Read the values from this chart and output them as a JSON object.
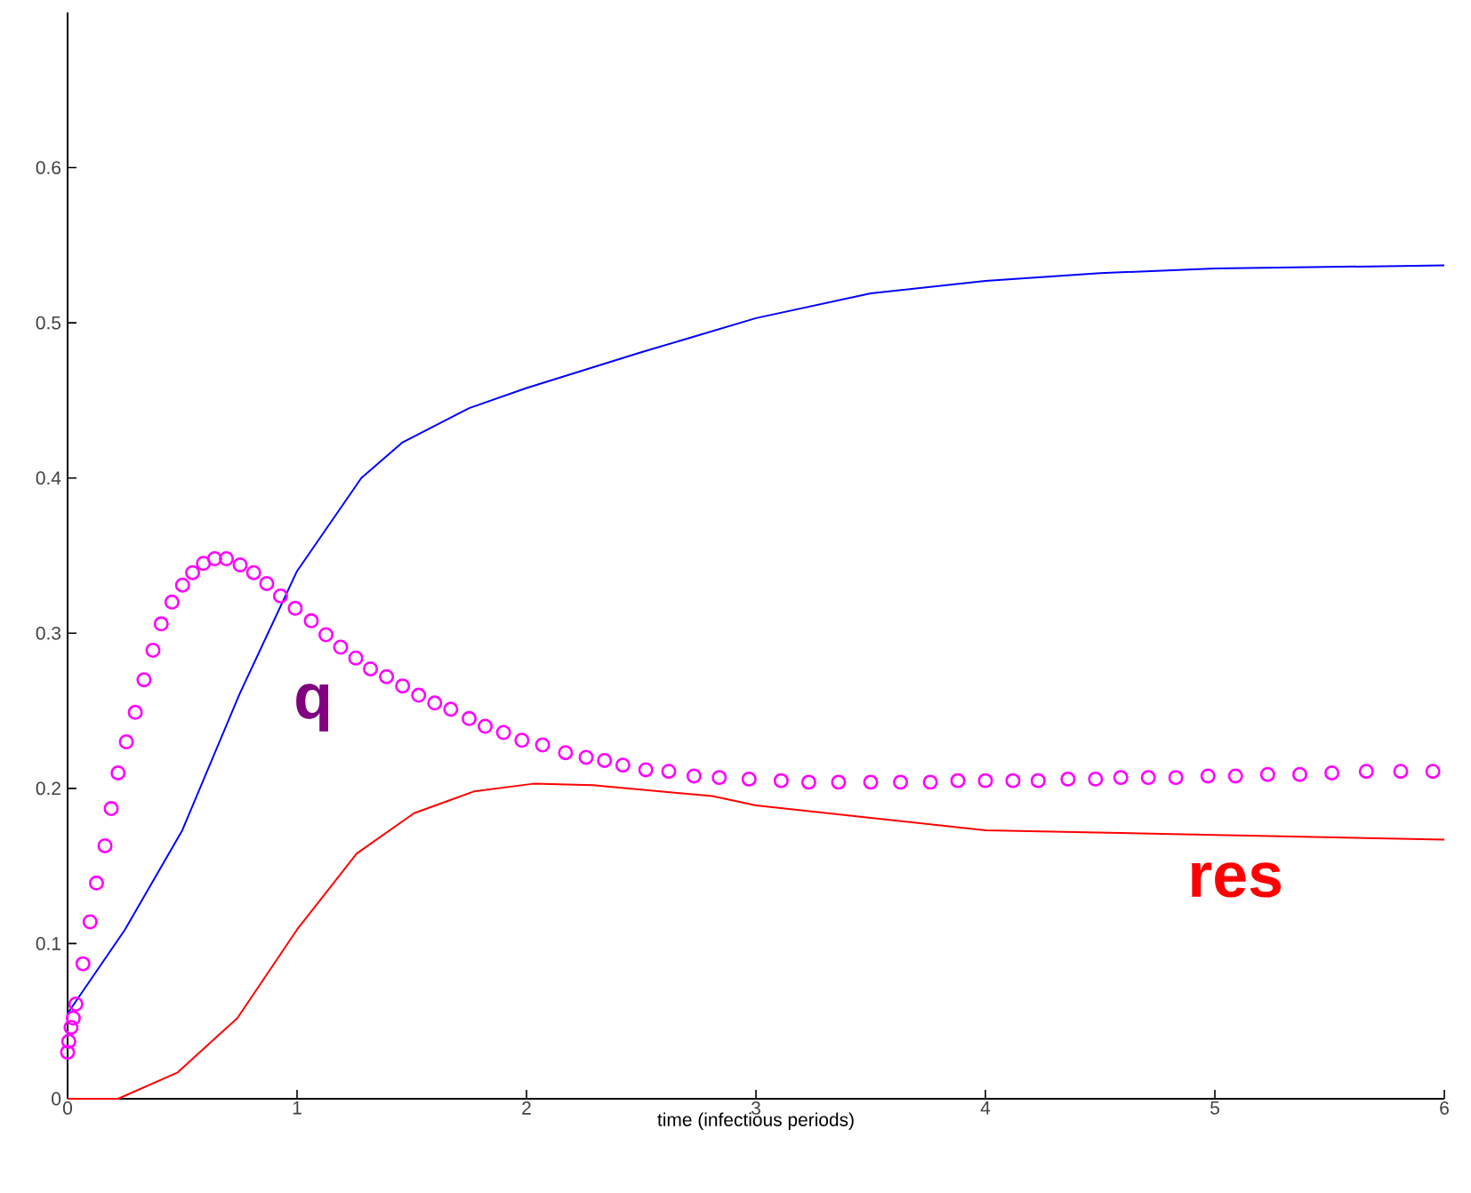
{
  "chart_data": {
    "type": "line",
    "xlabel": "time (infectious periods)",
    "xlim": [
      0,
      6
    ],
    "ylim": [
      0,
      0.7
    ],
    "xticks": [
      0,
      1,
      2,
      3,
      4,
      5,
      6
    ],
    "yticks": [
      0,
      0.1,
      0.2,
      0.3,
      0.4,
      0.5,
      0.6
    ],
    "series": [
      {
        "color": "#0000ff",
        "x": [
          0,
          0.25,
          0.5,
          0.75,
          1.0,
          1.28,
          1.46,
          1.75,
          2.0,
          2.5,
          3.0,
          3.5,
          4.0,
          4.5,
          5.0,
          6.0
        ],
        "values": [
          0.055,
          0.109,
          0.173,
          0.261,
          0.34,
          0.4,
          0.423,
          0.445,
          0.458,
          0.481,
          0.503,
          0.519,
          0.527,
          0.532,
          0.535,
          0.537
        ]
      },
      {
        "name": "q",
        "color": "#ff00ff",
        "type": "scatter",
        "marker": "circle",
        "x": [
          0,
          0.005,
          0.015,
          0.025,
          0.036,
          0.067,
          0.098,
          0.126,
          0.163,
          0.19,
          0.22,
          0.256,
          0.295,
          0.333,
          0.372,
          0.408,
          0.455,
          0.501,
          0.545,
          0.592,
          0.641,
          0.692,
          0.752,
          0.811,
          0.868,
          0.928,
          0.992,
          1.062,
          1.126,
          1.19,
          1.256,
          1.32,
          1.39,
          1.46,
          1.53,
          1.6,
          1.67,
          1.75,
          1.82,
          1.9,
          1.98,
          2.07,
          2.17,
          2.26,
          2.34,
          2.42,
          2.52,
          2.62,
          2.73,
          2.84,
          2.97,
          3.11,
          3.23,
          3.36,
          3.5,
          3.63,
          3.76,
          3.88,
          4.0,
          4.12,
          4.23,
          4.36,
          4.48,
          4.59,
          4.71,
          4.83,
          4.97,
          5.09,
          5.23,
          5.37,
          5.51,
          5.66,
          5.81,
          5.95
        ],
        "values": [
          0.03,
          0.037,
          0.046,
          0.052,
          0.061,
          0.087,
          0.114,
          0.139,
          0.163,
          0.187,
          0.21,
          0.23,
          0.249,
          0.27,
          0.289,
          0.306,
          0.32,
          0.331,
          0.339,
          0.345,
          0.348,
          0.348,
          0.344,
          0.339,
          0.332,
          0.324,
          0.316,
          0.308,
          0.299,
          0.291,
          0.284,
          0.277,
          0.272,
          0.266,
          0.26,
          0.255,
          0.251,
          0.245,
          0.24,
          0.236,
          0.231,
          0.228,
          0.223,
          0.22,
          0.218,
          0.215,
          0.212,
          0.211,
          0.208,
          0.207,
          0.206,
          0.205,
          0.204,
          0.204,
          0.204,
          0.204,
          0.204,
          0.205,
          0.205,
          0.205,
          0.205,
          0.206,
          0.206,
          0.207,
          0.207,
          0.207,
          0.208,
          0.208,
          0.209,
          0.209,
          0.21,
          0.211,
          0.211,
          0.211
        ]
      },
      {
        "name": "res",
        "color": "#ff0000",
        "x": [
          0,
          0.22,
          0.48,
          0.74,
          1.0,
          1.26,
          1.51,
          1.77,
          2.03,
          2.29,
          2.81,
          3.0,
          4.0,
          5.0,
          6.0
        ],
        "values": [
          0,
          0,
          0.017,
          0.052,
          0.109,
          0.158,
          0.184,
          0.198,
          0.203,
          0.202,
          0.195,
          0.189,
          0.173,
          0.17,
          0.167
        ]
      }
    ]
  }
}
